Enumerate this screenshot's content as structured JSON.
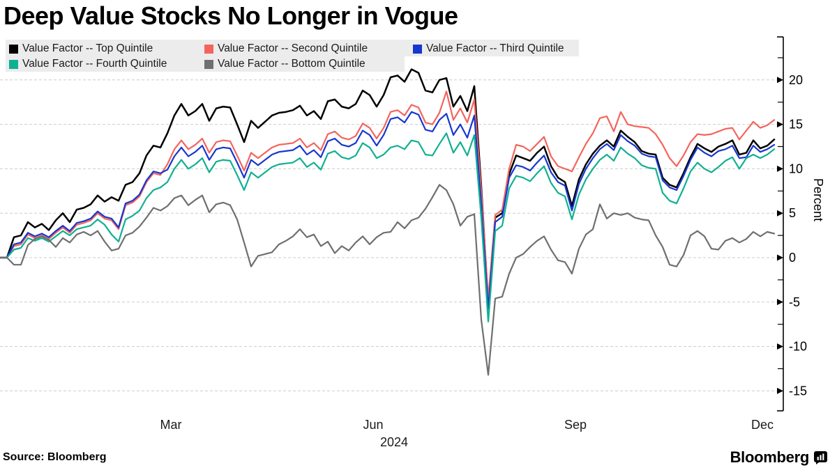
{
  "header": {
    "title": "Deep Value Stocks No Longer in Vogue"
  },
  "footer": {
    "source": "Source:  Bloomberg",
    "brand": "Bloomberg",
    "brand_icon": "bloomberg-terminal-icon"
  },
  "axis": {
    "y_axis_label": "Percent",
    "y_ticks": [
      20,
      15,
      10,
      5,
      0,
      -5,
      -10,
      -15
    ],
    "y_minor_ticks": [
      22.5,
      17.5,
      12.5,
      7.5,
      2.5,
      -2.5,
      -7.5,
      -12.5
    ],
    "x_ticks": [
      "Mar",
      "Jun",
      "Sep",
      "Dec"
    ],
    "year": "2024"
  },
  "colors": {
    "grid": "#CBCBCB",
    "axis": "#000000",
    "legend_bg": "#ECECEC"
  },
  "chart_data": {
    "type": "line",
    "title": "Deep Value Stocks No Longer in Vogue",
    "xlabel": "",
    "ylabel": "Percent",
    "ylim": [
      -17.5,
      22.5
    ],
    "x_tick_labels": [
      "Mar",
      "Jun",
      "Sep",
      "Dec"
    ],
    "x_year": "2024",
    "grid": "horizontal-dashed",
    "legend_position": "top-left",
    "series": [
      {
        "name": "Value Factor -- Top Quintile",
        "color": "#000000",
        "values": [
          0,
          0,
          2.3,
          2.5,
          4.0,
          3.4,
          3.8,
          3.1,
          4.2,
          5.0,
          4.0,
          5.4,
          5.6,
          6.0,
          7.0,
          6.3,
          6.8,
          6.4,
          8.2,
          8.5,
          9.5,
          11.5,
          12.6,
          12.4,
          14.0,
          16.0,
          17.3,
          16.0,
          16.5,
          17.3,
          15.4,
          16.8,
          17.0,
          16.9,
          15.0,
          13.0,
          15.4,
          14.6,
          15.3,
          16.0,
          16.3,
          16.4,
          16.6,
          17.1,
          16.0,
          16.5,
          15.6,
          17.6,
          17.8,
          17.0,
          16.8,
          17.3,
          18.8,
          18.3,
          17.0,
          18.3,
          20.3,
          20.5,
          19.8,
          21.2,
          20.8,
          18.8,
          18.6,
          20.0,
          20.2,
          17.0,
          18.2,
          16.5,
          19.3,
          8.0,
          -5.3,
          4.5,
          5.0,
          9.4,
          11.5,
          11.2,
          10.9,
          11.8,
          12.5,
          10.3,
          9.0,
          8.5,
          5.8,
          8.8,
          10.5,
          11.7,
          12.6,
          13.2,
          12.5,
          14.3,
          13.6,
          13.0,
          12.0,
          11.7,
          11.6,
          9.0,
          8.2,
          7.9,
          9.5,
          11.3,
          12.8,
          12.3,
          11.9,
          12.5,
          12.8,
          13.2,
          11.6,
          11.8,
          13.2,
          12.3,
          12.6,
          13.3
        ]
      },
      {
        "name": "Value Factor -- Second Quintile",
        "color": "#F4645D",
        "values": [
          0,
          0,
          1.3,
          1.5,
          2.6,
          2.2,
          2.5,
          2.1,
          2.8,
          3.4,
          2.8,
          3.7,
          3.9,
          4.2,
          5.0,
          4.4,
          4.2,
          3.2,
          5.9,
          6.2,
          6.9,
          8.5,
          9.5,
          9.3,
          10.5,
          12.2,
          13.2,
          12.2,
          12.7,
          13.4,
          11.8,
          13.0,
          13.2,
          13.1,
          11.5,
          9.8,
          11.8,
          11.2,
          11.8,
          12.4,
          12.7,
          12.8,
          12.9,
          13.4,
          12.4,
          12.9,
          12.1,
          13.9,
          14.2,
          13.5,
          13.3,
          13.7,
          15.1,
          14.6,
          13.4,
          14.6,
          16.4,
          16.6,
          16.0,
          17.2,
          16.9,
          15.2,
          15.0,
          16.3,
          18.7,
          15.5,
          16.8,
          15.2,
          17.8,
          7.5,
          -4.6,
          4.8,
          5.4,
          10.0,
          12.7,
          12.5,
          12.0,
          12.8,
          13.6,
          11.4,
          10.3,
          10.0,
          9.7,
          11.3,
          12.8,
          14.0,
          15.7,
          15.9,
          14.2,
          16.4,
          15.0,
          14.8,
          14.7,
          14.6,
          13.9,
          12.7,
          11.2,
          10.3,
          11.5,
          13.0,
          13.9,
          13.8,
          13.9,
          14.2,
          14.5,
          14.6,
          13.3,
          14.3,
          15.3,
          14.6,
          14.9,
          15.5
        ]
      },
      {
        "name": "Value Factor -- Third Quintile",
        "color": "#1637CF",
        "values": [
          0,
          0,
          1.5,
          1.7,
          2.8,
          2.4,
          2.7,
          2.3,
          3.0,
          3.6,
          3.0,
          3.9,
          4.1,
          4.4,
          5.2,
          4.6,
          4.4,
          3.4,
          6.1,
          6.4,
          7.1,
          8.7,
          9.7,
          9.5,
          9.9,
          11.4,
          12.4,
          11.4,
          11.9,
          12.6,
          11.0,
          12.2,
          12.4,
          12.3,
          10.7,
          9.0,
          11.0,
          10.4,
          11.0,
          11.6,
          11.9,
          12.0,
          12.1,
          12.6,
          11.6,
          12.1,
          11.3,
          13.1,
          13.4,
          12.7,
          12.5,
          12.9,
          14.3,
          13.8,
          12.6,
          13.8,
          15.6,
          15.8,
          15.2,
          16.4,
          16.1,
          14.4,
          14.2,
          15.5,
          16.2,
          13.8,
          15.0,
          13.5,
          16.0,
          6.0,
          -5.8,
          4.0,
          4.6,
          9.0,
          10.4,
          10.2,
          9.8,
          10.7,
          11.5,
          9.6,
          8.5,
          8.1,
          5.3,
          8.3,
          10.0,
          11.2,
          12.2,
          12.8,
          12.1,
          13.8,
          13.1,
          12.6,
          11.7,
          11.4,
          11.3,
          8.7,
          7.9,
          7.6,
          9.2,
          11.0,
          12.4,
          11.8,
          11.4,
          12.0,
          12.2,
          12.6,
          11.2,
          11.3,
          12.6,
          11.9,
          12.2,
          12.7
        ]
      },
      {
        "name": "Value Factor -- Fourth Quintile",
        "color": "#10B092",
        "values": [
          0,
          0,
          0.9,
          1.1,
          2.2,
          1.9,
          2.2,
          1.8,
          2.4,
          3.0,
          2.5,
          3.2,
          3.4,
          3.6,
          4.3,
          3.7,
          2.6,
          1.8,
          4.3,
          4.7,
          5.3,
          6.7,
          7.6,
          7.9,
          8.5,
          10.0,
          11.0,
          10.0,
          10.5,
          11.2,
          9.6,
          10.8,
          11.0,
          10.9,
          9.3,
          7.6,
          9.6,
          9.0,
          9.6,
          10.2,
          10.5,
          10.6,
          10.7,
          11.2,
          10.2,
          10.7,
          9.9,
          11.7,
          12.0,
          11.3,
          11.1,
          11.5,
          12.9,
          12.4,
          11.2,
          11.6,
          12.4,
          12.6,
          12.2,
          13.2,
          13.0,
          11.6,
          11.5,
          12.8,
          14.0,
          11.8,
          13.0,
          11.5,
          13.8,
          4.5,
          -7.2,
          3.0,
          3.6,
          7.8,
          9.2,
          9.0,
          8.6,
          9.5,
          10.3,
          8.4,
          7.3,
          6.9,
          4.3,
          7.1,
          8.8,
          10.0,
          11.0,
          11.6,
          10.9,
          12.4,
          11.7,
          11.2,
          10.4,
          10.1,
          10.0,
          7.3,
          6.4,
          6.1,
          7.8,
          9.7,
          10.7,
          10.0,
          9.6,
          10.2,
          10.9,
          11.3,
          10.0,
          11.2,
          11.6,
          11.2,
          11.6,
          12.2
        ]
      },
      {
        "name": "Value Factor -- Bottom Quintile",
        "color": "#6F6F6F",
        "values": [
          0,
          0,
          -0.8,
          -0.8,
          1.4,
          2.1,
          2.4,
          2.0,
          1.2,
          2.2,
          1.7,
          2.6,
          2.9,
          2.5,
          3.0,
          1.8,
          0.8,
          1.0,
          2.5,
          2.8,
          3.5,
          4.5,
          5.6,
          5.3,
          5.8,
          6.7,
          7.0,
          5.9,
          6.5,
          7.0,
          5.1,
          6.0,
          6.2,
          5.9,
          4.3,
          1.7,
          -1.0,
          0.2,
          0.4,
          0.6,
          1.5,
          1.9,
          2.4,
          3.2,
          2.3,
          2.6,
          1.3,
          1.8,
          0.5,
          1.3,
          0.8,
          1.7,
          2.4,
          1.5,
          2.3,
          2.8,
          2.9,
          4.0,
          3.3,
          4.2,
          4.5,
          5.5,
          6.8,
          8.2,
          7.6,
          6.0,
          3.6,
          4.6,
          4.9,
          -7.0,
          -13.2,
          -4.6,
          -4.4,
          -1.8,
          0.0,
          0.4,
          1.2,
          1.9,
          2.4,
          0.9,
          -0.3,
          -0.5,
          -1.8,
          1.0,
          2.6,
          3.2,
          6.0,
          4.4,
          5.0,
          4.8,
          5.0,
          4.5,
          4.3,
          4.2,
          2.5,
          1.2,
          -0.8,
          -1.0,
          0.3,
          2.5,
          3.0,
          2.4,
          1.0,
          0.9,
          1.9,
          2.2,
          1.7,
          2.1,
          2.9,
          2.4,
          2.9,
          2.7
        ]
      }
    ]
  }
}
